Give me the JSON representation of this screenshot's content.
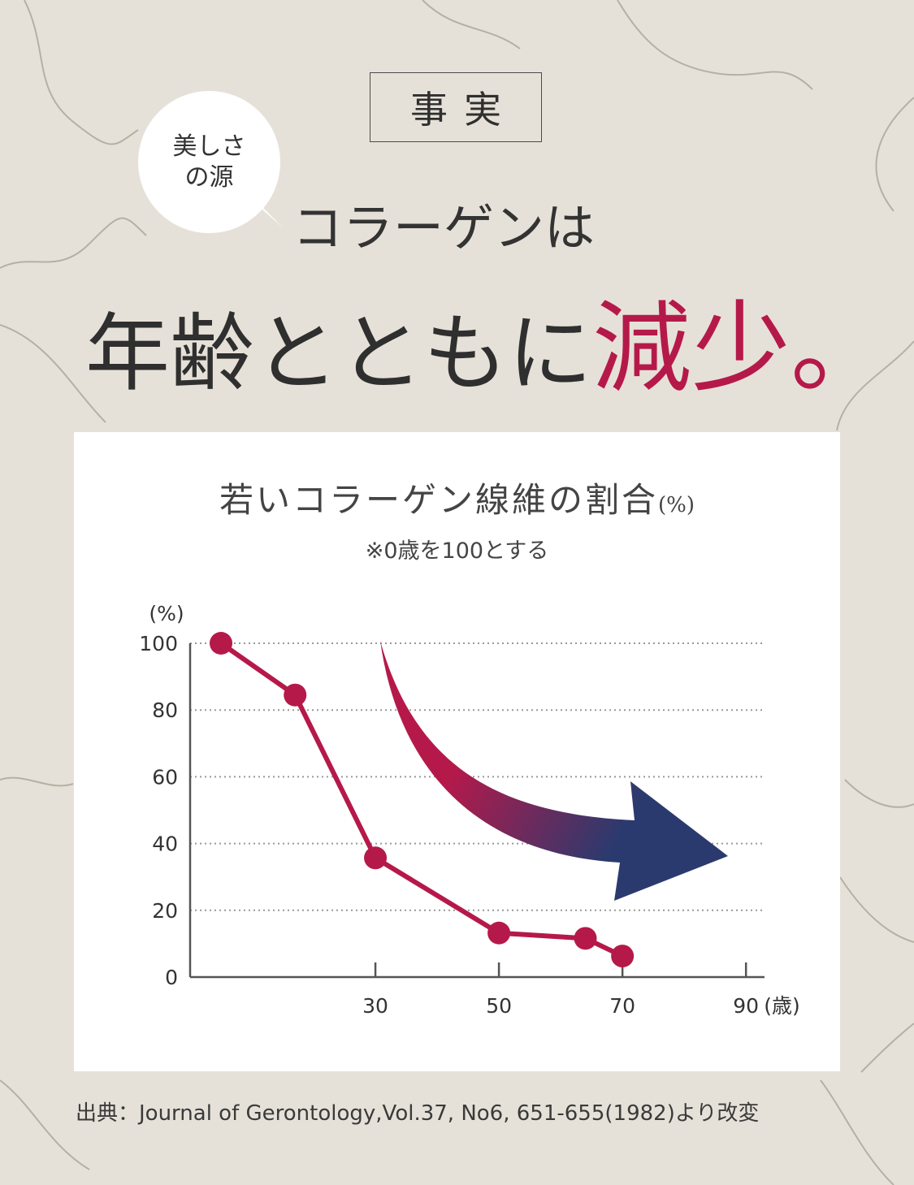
{
  "header": {
    "fact_label": "事実",
    "bubble_line1": "美しさ",
    "bubble_line2": "の源",
    "headline_line1": "コラーゲンは",
    "headline_line2_main": "年齢とともに",
    "headline_line2_accent": "減少。"
  },
  "colors": {
    "accent": "#b5194a",
    "arrow_start": "#b5194a",
    "arrow_end": "#2b3a6e"
  },
  "chart_data": {
    "type": "line",
    "title": "若いコラーゲン線維の割合",
    "title_unit": "(%)",
    "note": "※0歳を100とする",
    "ylabel": "(%)",
    "xlabel": "(歳)",
    "ylim": [
      0,
      100
    ],
    "xlim": [
      0,
      93
    ],
    "y_ticks": [
      0,
      20,
      40,
      60,
      80,
      100
    ],
    "x_ticks": [
      30,
      50,
      70,
      90
    ],
    "grid": true,
    "series": [
      {
        "x": [
          5,
          17,
          30,
          50,
          64,
          70
        ],
        "y": [
          100,
          84.5,
          35.7,
          13.2,
          11.6,
          6.3
        ]
      }
    ]
  },
  "source": "出典：Journal of Gerontology,Vol.37, No6, 651-655(1982)より改変"
}
